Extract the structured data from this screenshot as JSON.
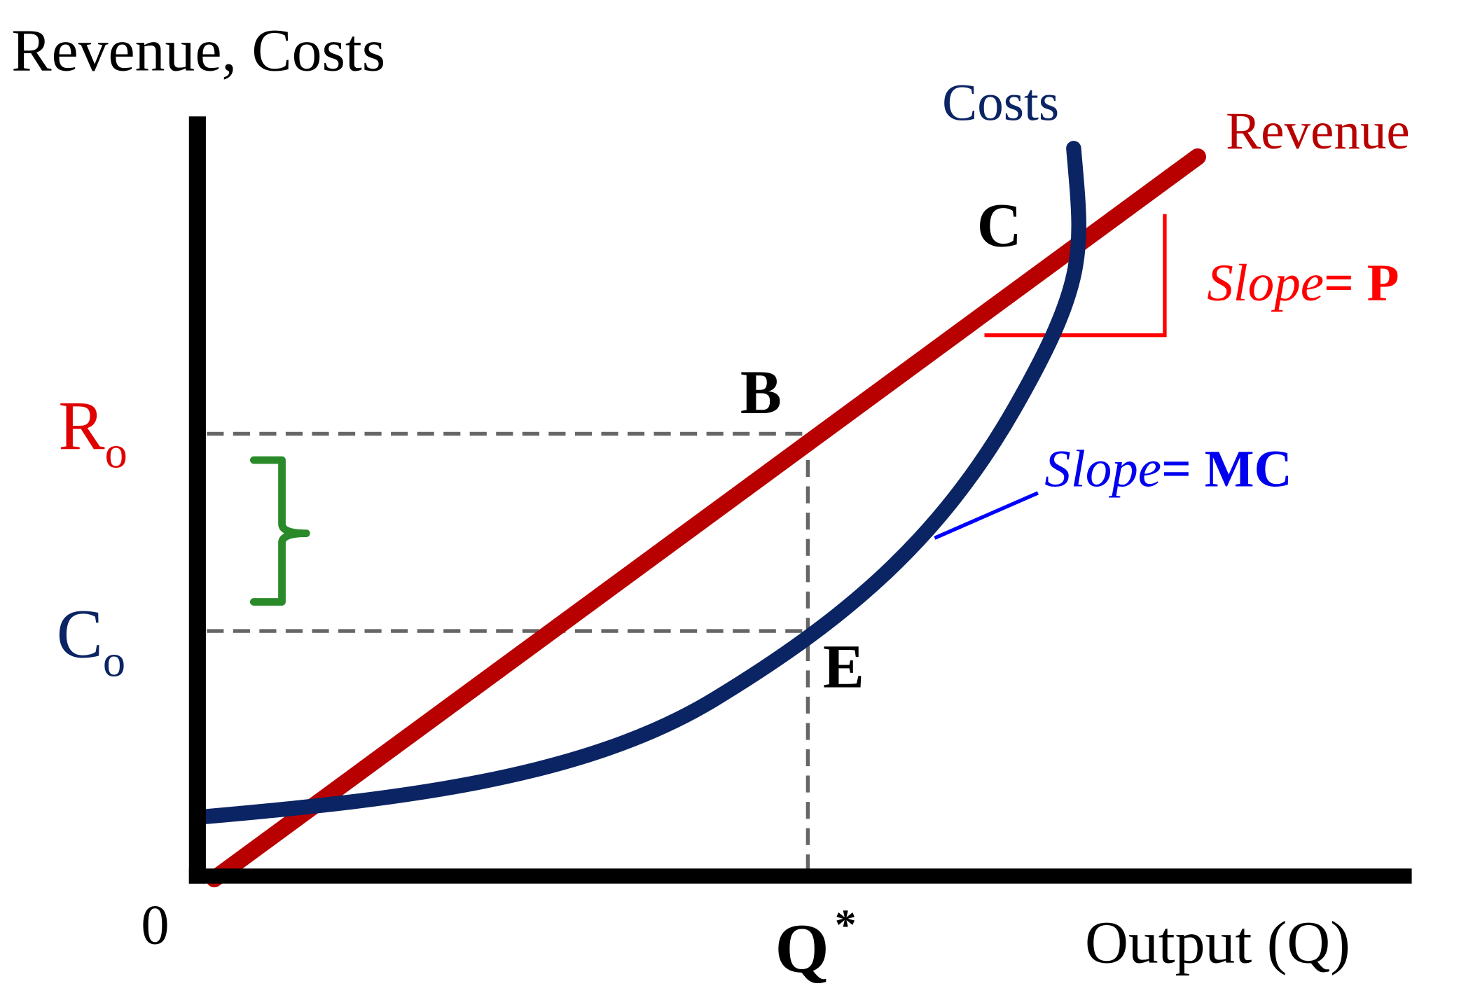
{
  "axes": {
    "y_label": "Revenue, Costs",
    "x_label": "Output (Q)",
    "origin": "0"
  },
  "curves": {
    "costs": "Costs",
    "revenue": "Revenue"
  },
  "points": {
    "b": "B",
    "c": "C",
    "e": "E"
  },
  "levels": {
    "r0": {
      "letter": "R",
      "sub": "o"
    },
    "c0": {
      "letter": "C",
      "sub": "o"
    },
    "q_star": {
      "letter": "Q",
      "sup": "*"
    }
  },
  "annotations": {
    "slope_p": {
      "word": "Slope",
      "rest": "= P"
    },
    "slope_mc": {
      "word": "Slope",
      "rest": "= MC"
    }
  }
}
